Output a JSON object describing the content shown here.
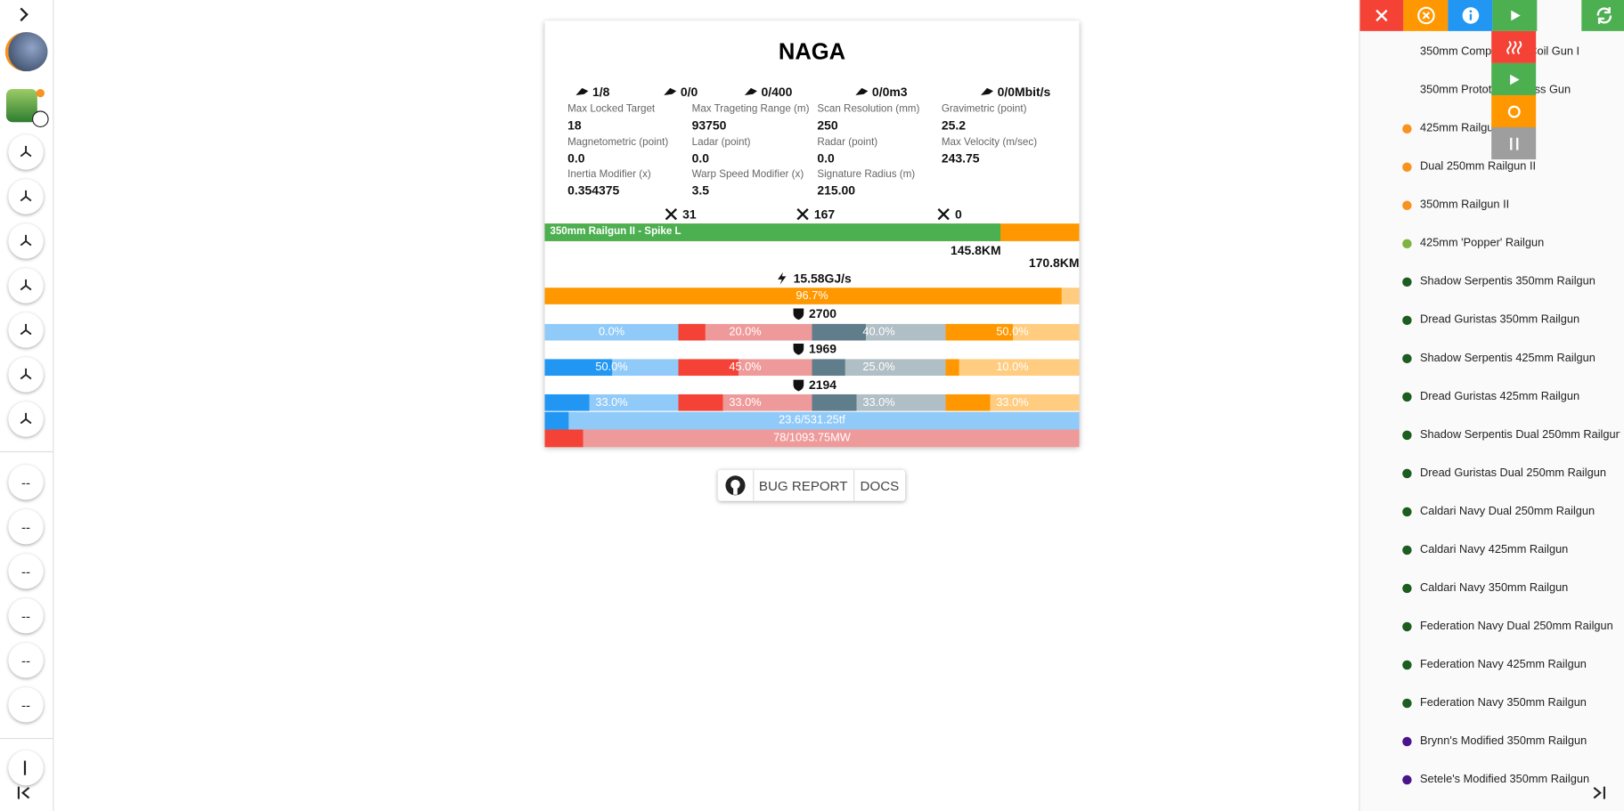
{
  "sidebar": {
    "empty_slots": [
      "--",
      "--",
      "--",
      "--",
      "--",
      "--"
    ]
  },
  "fit": {
    "title": "NAGA",
    "resources": [
      "1/8",
      "0/0",
      "0/400",
      "0/0m3",
      "0/0Mbit/s"
    ],
    "attributes": [
      {
        "label": "Max Locked Target",
        "value": "18"
      },
      {
        "label": "Max Trageting Range (m)",
        "value": "93750"
      },
      {
        "label": "Scan Resolution (mm)",
        "value": "250"
      },
      {
        "label": "Gravimetric (point)",
        "value": "25.2"
      },
      {
        "label": "Magnetometric (point)",
        "value": "0.0"
      },
      {
        "label": "Ladar (point)",
        "value": "0.0"
      },
      {
        "label": "Radar (point)",
        "value": "0.0"
      },
      {
        "label": "Max Velocity (m/sec)",
        "value": "243.75"
      },
      {
        "label": "Inertia Modifier (x)",
        "value": "0.354375"
      },
      {
        "label": "Warp Speed Modifier (x)",
        "value": "3.5"
      },
      {
        "label": "Signature Radius (m)",
        "value": "215.00"
      }
    ],
    "summary": [
      "31",
      "167",
      "0"
    ],
    "weapon": {
      "label": "350mm Railgun II - Spike L",
      "optimal": "145.8KM",
      "falloff": "170.8KM"
    },
    "capacitor": {
      "rate": "15.58GJ/s",
      "stable": "96.7%"
    },
    "defense": [
      {
        "hp": "2700",
        "resists": [
          "0.0%",
          "20.0%",
          "40.0%",
          "50.0%"
        ]
      },
      {
        "hp": "1969",
        "resists": [
          "50.0%",
          "45.0%",
          "25.0%",
          "10.0%"
        ]
      },
      {
        "hp": "2194",
        "resists": [
          "33.0%",
          "33.0%",
          "33.0%",
          "33.0%"
        ]
      }
    ],
    "cpu": "23.6/531.25tf",
    "powergrid": "78/1093.75MW"
  },
  "footer": {
    "buttons": [
      "BUG REPORT",
      "DOCS"
    ]
  },
  "panel": {
    "items": [
      {
        "label": "350mm Compressed Coil Gun I"
      },
      {
        "label": "350mm Prototype Gauss Gun"
      },
      {
        "label": "425mm Railgun I",
        "color": "#f7931e"
      },
      {
        "label": "Dual 250mm Railgun II",
        "color": "#f7931e"
      },
      {
        "label": "350mm Railgun II",
        "color": "#f7931e"
      },
      {
        "label": "425mm 'Popper' Railgun",
        "color": "#7cb342"
      },
      {
        "label": "Shadow Serpentis 350mm Railgun",
        "color": "#1b5e20"
      },
      {
        "label": "Dread Guristas 350mm Railgun",
        "color": "#1b5e20"
      },
      {
        "label": "Shadow Serpentis 425mm Railgun",
        "color": "#1b5e20"
      },
      {
        "label": "Dread Guristas 425mm Railgun",
        "color": "#1b5e20"
      },
      {
        "label": "Shadow Serpentis Dual 250mm Railgun",
        "color": "#1b5e20"
      },
      {
        "label": "Dread Guristas Dual 250mm Railgun",
        "color": "#1b5e20"
      },
      {
        "label": "Caldari Navy Dual 250mm Railgun",
        "color": "#1b5e20"
      },
      {
        "label": "Caldari Navy 425mm Railgun",
        "color": "#1b5e20"
      },
      {
        "label": "Caldari Navy 350mm Railgun",
        "color": "#1b5e20"
      },
      {
        "label": "Federation Navy Dual 250mm Railgun",
        "color": "#1b5e20"
      },
      {
        "label": "Federation Navy 425mm Railgun",
        "color": "#1b5e20"
      },
      {
        "label": "Federation Navy 350mm Railgun",
        "color": "#1b5e20"
      },
      {
        "label": "Brynn's Modified 350mm Railgun",
        "color": "#4a148c"
      },
      {
        "label": "Setele's Modified 350mm Railgun",
        "color": "#4a148c"
      }
    ]
  }
}
